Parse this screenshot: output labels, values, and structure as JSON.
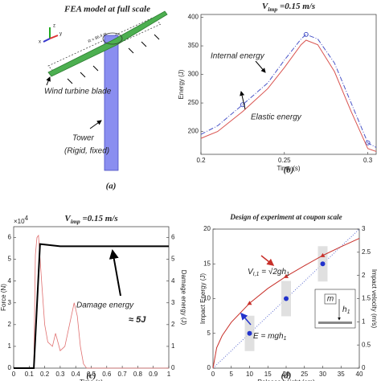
{
  "diagram": {
    "panel": "(a)",
    "title": "FEA model at full scale",
    "axis_labels": [
      "z",
      "y",
      "x"
    ],
    "radius_label": "R = 86.4 m",
    "blade_label": "Wind turbine blade",
    "tower_label": "Tower",
    "tower_note": "(Rigid, fixed)"
  },
  "chart_data": [
    {
      "type": "line",
      "panel": "(b)",
      "title_parts": [
        "V",
        "imp",
        " =0.15 m/s"
      ],
      "xlabel": "Time (s)",
      "ylabel": "Energy (J)",
      "xlim": [
        0.2,
        0.305
      ],
      "xticks": [
        0.2,
        0.25,
        0.3
      ],
      "ylim": [
        160,
        405
      ],
      "yticks": [
        200,
        250,
        300,
        350,
        400
      ],
      "x": [
        0.2,
        0.21,
        0.225,
        0.24,
        0.25,
        0.26,
        0.263,
        0.27,
        0.28,
        0.29,
        0.3,
        0.305
      ],
      "series": [
        {
          "name": "Internal energy",
          "color": "#4a55c8",
          "line_style": "dashdot",
          "marker": "circle",
          "marker_every": 4,
          "values": [
            195,
            210,
            247,
            285,
            325,
            362,
            370,
            362,
            320,
            250,
            180,
            172
          ]
        },
        {
          "name": "Elastic energy",
          "color": "#d9534f",
          "line_style": "solid",
          "marker": "plus",
          "marker_every": 2,
          "values": [
            188,
            200,
            235,
            275,
            312,
            352,
            360,
            352,
            305,
            235,
            170,
            165
          ]
        }
      ]
    },
    {
      "type": "line",
      "panel": "(c)",
      "title_parts": [
        "V",
        "imp",
        " =0.15 m/s"
      ],
      "xlabel": "Time (s)",
      "ylabel": "Force (N)",
      "y2label": "Damage energy (J)",
      "y_multiplier": [
        "×10",
        "4"
      ],
      "xlim": [
        0,
        1
      ],
      "xticks": [
        0,
        0.1,
        0.2,
        0.3,
        0.4,
        0.5,
        0.6,
        0.7,
        0.8,
        0.9,
        1
      ],
      "ylim": [
        0,
        6.5
      ],
      "yticks": [
        0,
        1,
        2,
        3,
        4,
        5,
        6
      ],
      "y2lim": [
        0,
        6.5
      ],
      "y2ticks": [
        0,
        1,
        2,
        3,
        4,
        5,
        6
      ],
      "annotation": "≈ 5J",
      "series": [
        {
          "color": "#e07070",
          "line_style": "solid",
          "line_width": 0.8,
          "x": [
            0,
            0.13,
            0.14,
            0.15,
            0.16,
            0.18,
            0.2,
            0.22,
            0.25,
            0.27,
            0.3,
            0.33,
            0.36,
            0.39,
            0.41,
            0.43,
            0.45,
            0.47,
            1
          ],
          "values": [
            0,
            0,
            5.2,
            6.0,
            6.1,
            4,
            2,
            1.2,
            1.0,
            1.6,
            0.8,
            1.0,
            2.0,
            3.0,
            2.4,
            1.0,
            0.2,
            0,
            0
          ]
        },
        {
          "name": "Damage energy",
          "color": "#000000",
          "line_style": "solid",
          "line_width": 2,
          "axis": "y2",
          "x": [
            0,
            0.13,
            0.17,
            0.3,
            1
          ],
          "values": [
            0,
            0,
            5.7,
            5.6,
            5.6
          ]
        }
      ]
    },
    {
      "type": "line",
      "panel": "(d)",
      "title": "Design of experiment at coupon scale",
      "xlabel": "Release height (cm)",
      "ylabel": "Impact Energy (J)",
      "y2label": "Impact velocity (m/s)",
      "xlim": [
        0,
        40
      ],
      "xticks": [
        0,
        5,
        10,
        15,
        20,
        25,
        30,
        35,
        40
      ],
      "ylim": [
        0,
        20
      ],
      "yticks": [
        0,
        5,
        10,
        15,
        20
      ],
      "y2lim": [
        0,
        3
      ],
      "y2ticks": [
        0,
        0.5,
        1,
        1.5,
        2,
        2.5,
        3
      ],
      "velocity_formula": [
        "V",
        "I,1",
        " = ",
        "√2gh",
        "1"
      ],
      "energy_formula": [
        "E = mgh",
        "1"
      ],
      "inset": [
        "m",
        "h",
        "1"
      ],
      "series": [
        {
          "color": "#5a6ad0",
          "line_style": "dotted",
          "x": [
            0,
            40
          ],
          "values": [
            0,
            20
          ]
        },
        {
          "color": "#2233cc",
          "line": false,
          "marker": "dot",
          "boxed": true,
          "x": [
            10,
            20,
            30
          ],
          "values": [
            5,
            10,
            15
          ]
        },
        {
          "color": "#c8302a",
          "line_style": "solid",
          "axis": "y2",
          "x": [
            0,
            1,
            2.5,
            5,
            10,
            15,
            20,
            25,
            30,
            35,
            40
          ],
          "values": [
            0,
            0.44,
            0.7,
            0.99,
            1.4,
            1.72,
            1.98,
            2.21,
            2.43,
            2.62,
            2.8
          ]
        },
        {
          "color": "#c8302a",
          "line": false,
          "marker": "triangle",
          "axis": "y2",
          "x": [
            10,
            20,
            30
          ],
          "values": [
            1.4,
            1.98,
            2.43
          ]
        }
      ]
    }
  ]
}
